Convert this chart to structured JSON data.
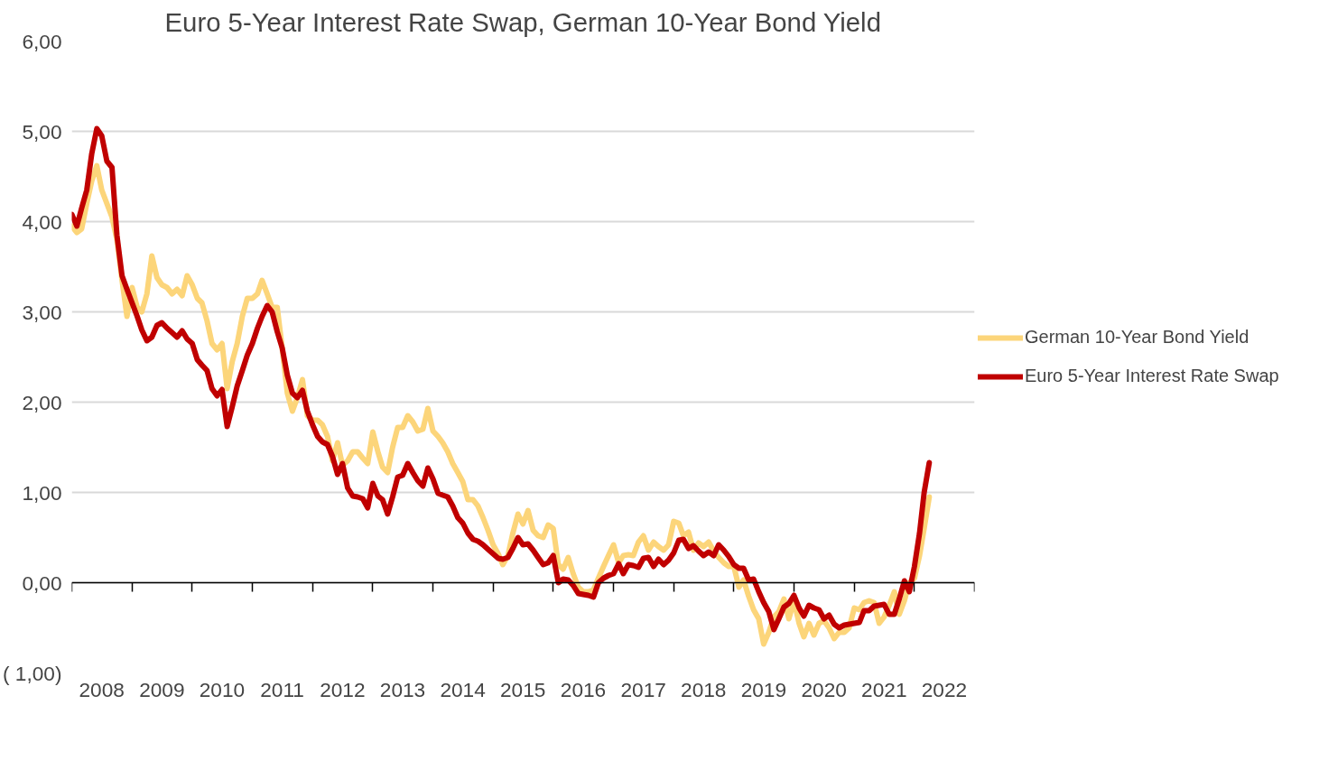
{
  "chart_data": {
    "type": "line",
    "title": "Euro 5-Year Interest Rate Swap, German 10-Year Bond Yield",
    "x": [
      "2008-01",
      "2008-02",
      "2008-03",
      "2008-04",
      "2008-05",
      "2008-06",
      "2008-07",
      "2008-08",
      "2008-09",
      "2008-10",
      "2008-11",
      "2008-12",
      "2009-01",
      "2009-02",
      "2009-03",
      "2009-04",
      "2009-05",
      "2009-06",
      "2009-07",
      "2009-08",
      "2009-09",
      "2009-10",
      "2009-11",
      "2009-12",
      "2010-01",
      "2010-02",
      "2010-03",
      "2010-04",
      "2010-05",
      "2010-06",
      "2010-07",
      "2010-08",
      "2010-09",
      "2010-10",
      "2010-11",
      "2010-12",
      "2011-01",
      "2011-02",
      "2011-03",
      "2011-04",
      "2011-05",
      "2011-06",
      "2011-07",
      "2011-08",
      "2011-09",
      "2011-10",
      "2011-11",
      "2011-12",
      "2012-01",
      "2012-02",
      "2012-03",
      "2012-04",
      "2012-05",
      "2012-06",
      "2012-07",
      "2012-08",
      "2012-09",
      "2012-10",
      "2012-11",
      "2012-12",
      "2013-01",
      "2013-02",
      "2013-03",
      "2013-04",
      "2013-05",
      "2013-06",
      "2013-07",
      "2013-08",
      "2013-09",
      "2013-10",
      "2013-11",
      "2013-12",
      "2014-01",
      "2014-02",
      "2014-03",
      "2014-04",
      "2014-05",
      "2014-06",
      "2014-07",
      "2014-08",
      "2014-09",
      "2014-10",
      "2014-11",
      "2014-12",
      "2015-01",
      "2015-02",
      "2015-03",
      "2015-04",
      "2015-05",
      "2015-06",
      "2015-07",
      "2015-08",
      "2015-09",
      "2015-10",
      "2015-11",
      "2015-12",
      "2016-01",
      "2016-02",
      "2016-03",
      "2016-04",
      "2016-05",
      "2016-06",
      "2016-07",
      "2016-08",
      "2016-09",
      "2016-10",
      "2016-11",
      "2016-12",
      "2017-01",
      "2017-02",
      "2017-03",
      "2017-04",
      "2017-05",
      "2017-06",
      "2017-07",
      "2017-08",
      "2017-09",
      "2017-10",
      "2017-11",
      "2017-12",
      "2018-01",
      "2018-02",
      "2018-03",
      "2018-04",
      "2018-05",
      "2018-06",
      "2018-07",
      "2018-08",
      "2018-09",
      "2018-10",
      "2018-11",
      "2018-12",
      "2019-01",
      "2019-02",
      "2019-03",
      "2019-04",
      "2019-05",
      "2019-06",
      "2019-07",
      "2019-08",
      "2019-09",
      "2019-10",
      "2019-11",
      "2019-12",
      "2020-01",
      "2020-02",
      "2020-03",
      "2020-04",
      "2020-05",
      "2020-06",
      "2020-07",
      "2020-08",
      "2020-09",
      "2020-10",
      "2020-11",
      "2020-12",
      "2021-01",
      "2021-02",
      "2021-03",
      "2021-04",
      "2021-05",
      "2021-06",
      "2021-07",
      "2021-08",
      "2021-09",
      "2021-10",
      "2021-11",
      "2021-12",
      "2022-01",
      "2022-02",
      "2022-03",
      "2022-04"
    ],
    "series": [
      {
        "name": "German 10-Year Bond Yield",
        "color": "#fcd57a",
        "values": [
          3.95,
          3.88,
          3.92,
          4.2,
          4.45,
          4.62,
          4.35,
          4.2,
          4.05,
          3.8,
          3.35,
          2.95,
          3.27,
          3.05,
          3.0,
          3.2,
          3.62,
          3.38,
          3.3,
          3.27,
          3.2,
          3.25,
          3.18,
          3.4,
          3.3,
          3.15,
          3.1,
          2.9,
          2.65,
          2.58,
          2.65,
          2.15,
          2.45,
          2.65,
          2.95,
          3.15,
          3.15,
          3.2,
          3.35,
          3.2,
          3.05,
          3.05,
          2.6,
          2.1,
          1.9,
          2.05,
          2.25,
          1.85,
          1.8,
          1.8,
          1.75,
          1.62,
          1.35,
          1.55,
          1.3,
          1.35,
          1.45,
          1.45,
          1.38,
          1.32,
          1.67,
          1.45,
          1.28,
          1.22,
          1.5,
          1.72,
          1.72,
          1.85,
          1.78,
          1.68,
          1.7,
          1.93,
          1.68,
          1.62,
          1.55,
          1.45,
          1.32,
          1.22,
          1.12,
          0.92,
          0.92,
          0.85,
          0.72,
          0.58,
          0.42,
          0.32,
          0.2,
          0.3,
          0.55,
          0.76,
          0.65,
          0.8,
          0.58,
          0.52,
          0.5,
          0.64,
          0.6,
          0.2,
          0.15,
          0.28,
          0.1,
          -0.05,
          -0.1,
          -0.1,
          -0.08,
          0.05,
          0.18,
          0.3,
          0.42,
          0.22,
          0.3,
          0.31,
          0.3,
          0.45,
          0.52,
          0.36,
          0.45,
          0.4,
          0.36,
          0.42,
          0.68,
          0.66,
          0.52,
          0.56,
          0.36,
          0.44,
          0.4,
          0.45,
          0.35,
          0.28,
          0.22,
          0.18,
          0.18,
          -0.05,
          0.03,
          -0.15,
          -0.3,
          -0.4,
          -0.68,
          -0.55,
          -0.38,
          -0.32,
          -0.18,
          -0.4,
          -0.2,
          -0.45,
          -0.6,
          -0.45,
          -0.58,
          -0.45,
          -0.42,
          -0.5,
          -0.62,
          -0.55,
          -0.55,
          -0.5,
          -0.28,
          -0.3,
          -0.22,
          -0.2,
          -0.22,
          -0.45,
          -0.38,
          -0.25,
          -0.1,
          -0.35,
          -0.2,
          0.0,
          0.05,
          0.3,
          0.6,
          0.95
        ]
      },
      {
        "name": "Euro 5-Year Interest Rate Swap",
        "color": "#c00000",
        "values": [
          4.08,
          3.95,
          4.15,
          4.35,
          4.75,
          5.03,
          4.95,
          4.67,
          4.6,
          3.85,
          3.4,
          3.25,
          3.1,
          2.95,
          2.8,
          2.68,
          2.72,
          2.85,
          2.88,
          2.82,
          2.77,
          2.72,
          2.79,
          2.7,
          2.65,
          2.47,
          2.41,
          2.35,
          2.15,
          2.07,
          2.14,
          1.73,
          1.95,
          2.18,
          2.35,
          2.52,
          2.65,
          2.82,
          2.95,
          3.07,
          3.0,
          2.78,
          2.6,
          2.3,
          2.1,
          2.05,
          2.13,
          1.9,
          1.75,
          1.62,
          1.56,
          1.53,
          1.4,
          1.2,
          1.32,
          1.05,
          0.96,
          0.95,
          0.93,
          0.83,
          1.1,
          0.96,
          0.92,
          0.76,
          0.95,
          1.17,
          1.19,
          1.32,
          1.22,
          1.13,
          1.07,
          1.27,
          1.15,
          0.99,
          0.97,
          0.95,
          0.85,
          0.72,
          0.66,
          0.55,
          0.48,
          0.46,
          0.42,
          0.37,
          0.32,
          0.27,
          0.26,
          0.28,
          0.38,
          0.5,
          0.42,
          0.43,
          0.36,
          0.28,
          0.2,
          0.22,
          0.3,
          0.0,
          0.04,
          0.03,
          -0.03,
          -0.12,
          -0.13,
          -0.14,
          -0.16,
          0.0,
          0.05,
          0.08,
          0.1,
          0.21,
          0.1,
          0.2,
          0.19,
          0.17,
          0.27,
          0.28,
          0.18,
          0.26,
          0.2,
          0.25,
          0.33,
          0.47,
          0.48,
          0.38,
          0.41,
          0.35,
          0.3,
          0.34,
          0.3,
          0.42,
          0.36,
          0.29,
          0.2,
          0.16,
          0.16,
          0.03,
          0.04,
          -0.1,
          -0.22,
          -0.32,
          -0.52,
          -0.4,
          -0.27,
          -0.23,
          -0.14,
          -0.28,
          -0.37,
          -0.25,
          -0.28,
          -0.3,
          -0.4,
          -0.36,
          -0.46,
          -0.5,
          -0.47,
          -0.46,
          -0.45,
          -0.44,
          -0.31,
          -0.31,
          -0.26,
          -0.25,
          -0.24,
          -0.35,
          -0.35,
          -0.18,
          0.02,
          -0.1,
          0.18,
          0.55,
          1.0,
          1.33
        ]
      }
    ],
    "xlim": [
      "2008-01-01",
      "2023-01-01"
    ],
    "xticks": [
      {
        "value": "2008-01-01",
        "label": null
      },
      {
        "value": "2008-07-01",
        "label": "2008"
      },
      {
        "value": "2009-01-01",
        "label": null
      },
      {
        "value": "2009-07-01",
        "label": "2009"
      },
      {
        "value": "2010-01-01",
        "label": null
      },
      {
        "value": "2010-07-01",
        "label": "2010"
      },
      {
        "value": "2011-01-01",
        "label": null
      },
      {
        "value": "2011-07-01",
        "label": "2011"
      },
      {
        "value": "2012-01-01",
        "label": null
      },
      {
        "value": "2012-07-01",
        "label": "2012"
      },
      {
        "value": "2013-01-01",
        "label": null
      },
      {
        "value": "2013-07-01",
        "label": "2013"
      },
      {
        "value": "2014-01-01",
        "label": null
      },
      {
        "value": "2014-07-01",
        "label": "2014"
      },
      {
        "value": "2015-01-01",
        "label": null
      },
      {
        "value": "2015-07-01",
        "label": "2015"
      },
      {
        "value": "2016-01-01",
        "label": null
      },
      {
        "value": "2016-07-01",
        "label": "2016"
      },
      {
        "value": "2017-01-01",
        "label": null
      },
      {
        "value": "2017-07-01",
        "label": "2017"
      },
      {
        "value": "2018-01-01",
        "label": null
      },
      {
        "value": "2018-07-01",
        "label": "2018"
      },
      {
        "value": "2019-01-01",
        "label": null
      },
      {
        "value": "2019-07-01",
        "label": "2019"
      },
      {
        "value": "2020-01-01",
        "label": null
      },
      {
        "value": "2020-07-01",
        "label": "2020"
      },
      {
        "value": "2021-01-01",
        "label": null
      },
      {
        "value": "2021-07-01",
        "label": "2021"
      },
      {
        "value": "2022-01-01",
        "label": null
      },
      {
        "value": "2022-07-01",
        "label": "2022"
      },
      {
        "value": "2023-01-01",
        "label": null
      }
    ],
    "ylim": [
      -1,
      6
    ],
    "yticks": [
      {
        "value": -1,
        "label": "( 1,00)"
      },
      {
        "value": 0,
        "label": "0,00"
      },
      {
        "value": 1,
        "label": "1,00"
      },
      {
        "value": 2,
        "label": "2,00"
      },
      {
        "value": 3,
        "label": "3,00"
      },
      {
        "value": 4,
        "label": "4,00"
      },
      {
        "value": 5,
        "label": "5,00"
      },
      {
        "value": 6,
        "label": "6,00"
      }
    ],
    "grid": "y",
    "legend": "right",
    "marker": "none",
    "line_style": "solid"
  }
}
